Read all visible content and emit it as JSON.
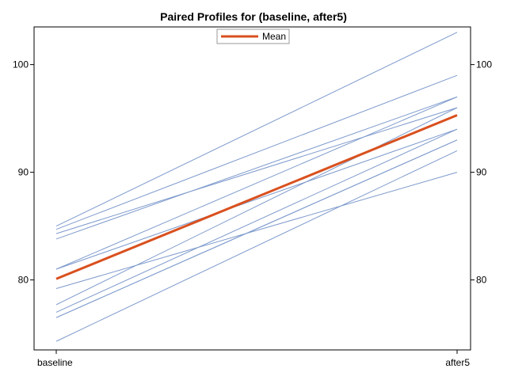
{
  "chart_data": {
    "type": "line",
    "title": "Paired Profiles for (baseline, after5)",
    "xlabel": "",
    "ylabel": "",
    "categories": [
      "baseline",
      "after5"
    ],
    "ylim": [
      73.5,
      103.5
    ],
    "yticks": [
      80,
      90,
      100
    ],
    "grid": false,
    "legend_position": "top-center",
    "legend": [
      "Mean"
    ],
    "colors": {
      "profile": "#7e9acc",
      "mean": "#d9501e",
      "axis": "#000000"
    },
    "series": [
      {
        "values": [
          85.0,
          103.0
        ]
      },
      {
        "values": [
          84.7,
          99.0
        ]
      },
      {
        "values": [
          84.3,
          96.0
        ]
      },
      {
        "values": [
          83.8,
          97.0
        ]
      },
      {
        "values": [
          81.0,
          97.0
        ]
      },
      {
        "values": [
          81.0,
          94.0
        ]
      },
      {
        "values": [
          79.2,
          90.0
        ]
      },
      {
        "values": [
          77.7,
          96.0
        ]
      },
      {
        "values": [
          77.0,
          94.0
        ]
      },
      {
        "values": [
          76.5,
          93.0
        ]
      },
      {
        "values": [
          76.5,
          93.0
        ]
      },
      {
        "values": [
          74.3,
          92.0
        ]
      },
      {
        "name": "Mean",
        "values": [
          80.1,
          95.3
        ]
      }
    ]
  }
}
